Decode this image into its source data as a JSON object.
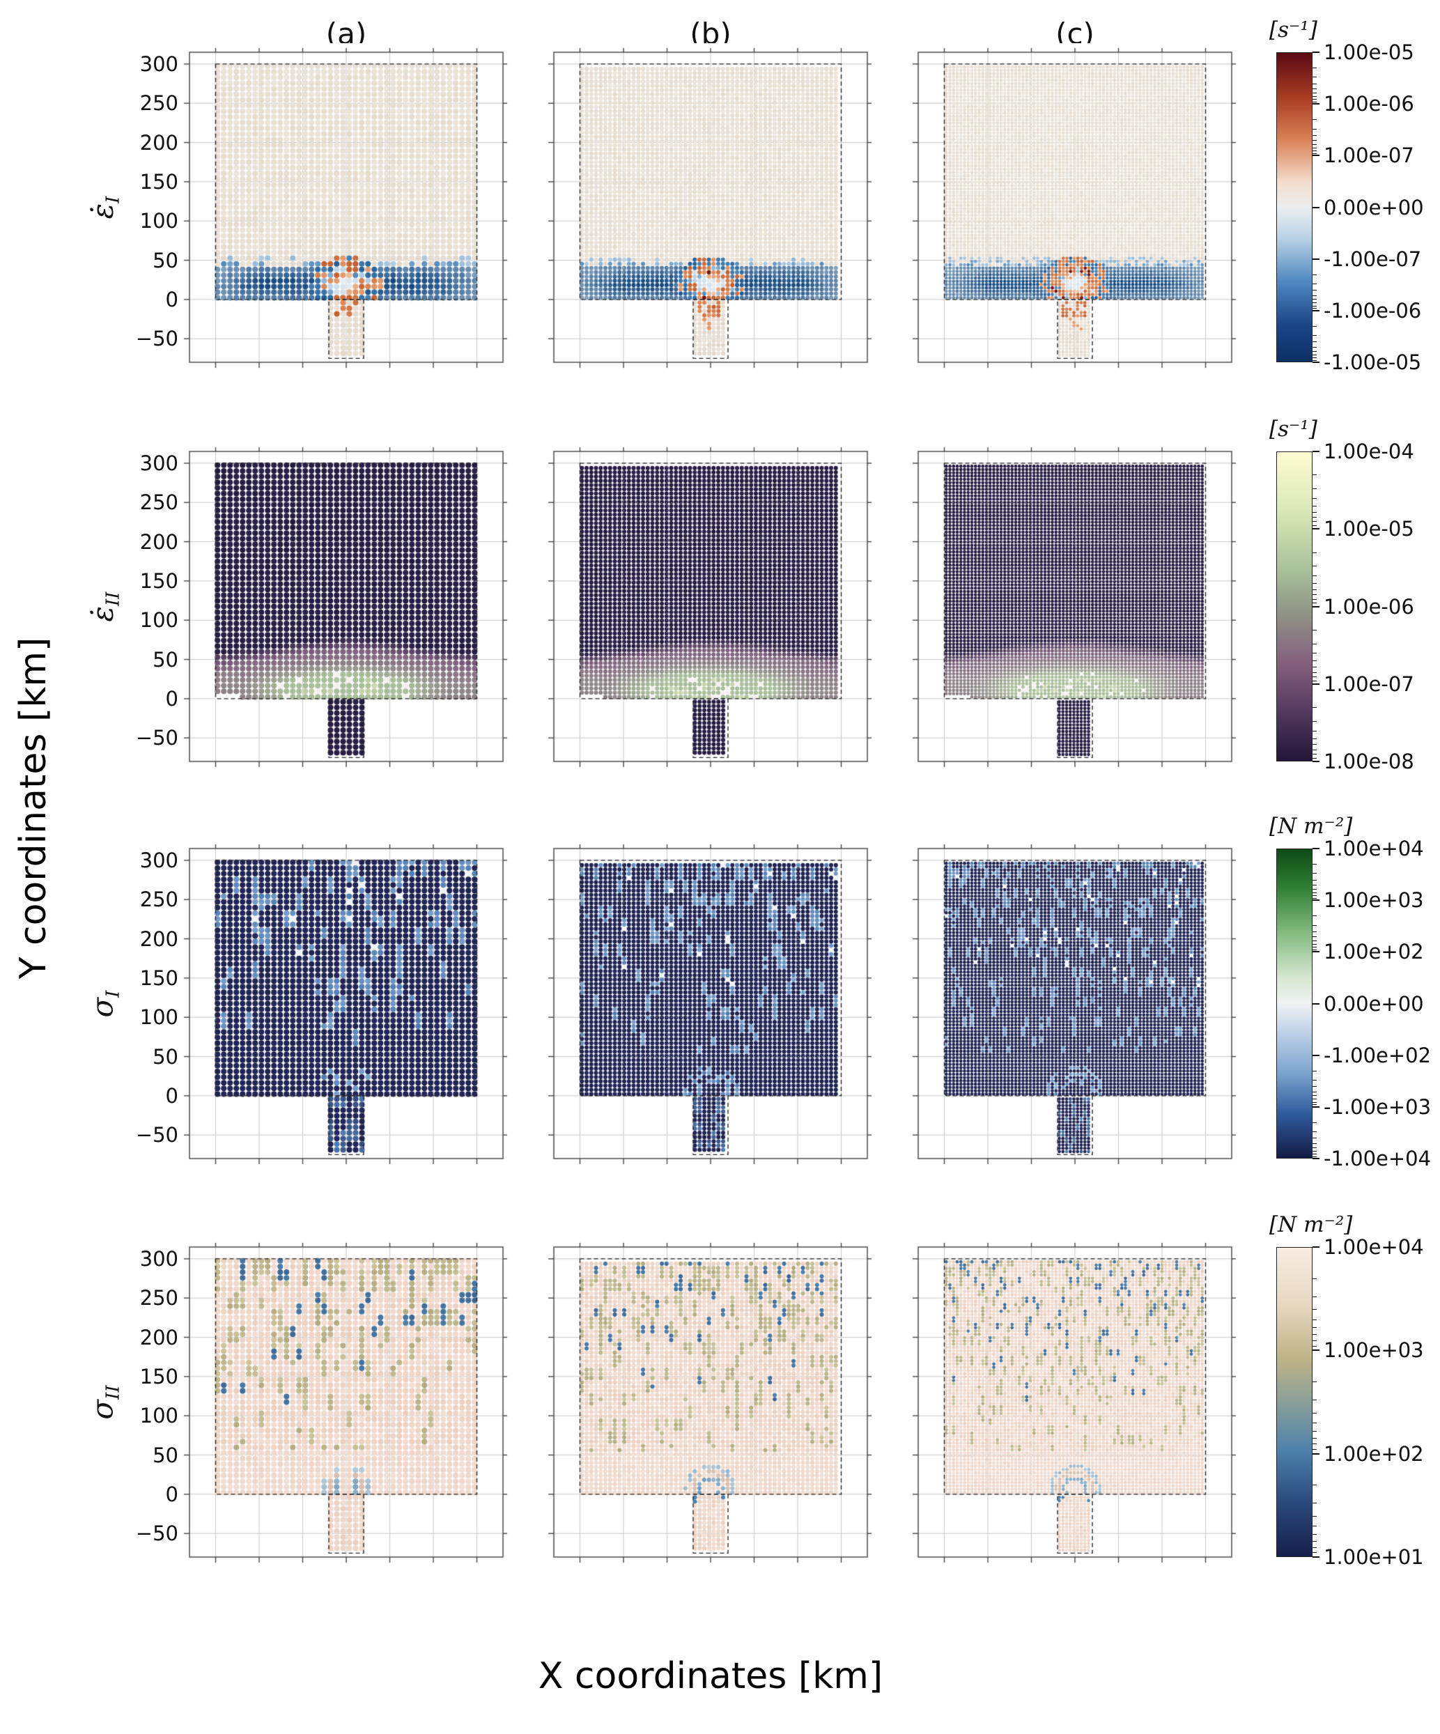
{
  "figure": {
    "x_axis_label": "X coordinates [km]",
    "y_axis_label": "Y coordinates [km]",
    "column_titles": [
      "(a)",
      "(b)",
      "(c)"
    ],
    "rows": [
      {
        "label_base": "ε̇",
        "label_sub": "I",
        "unit": "[s⁻¹]"
      },
      {
        "label_base": "ε̇",
        "label_sub": "II",
        "unit": "[s⁻¹]"
      },
      {
        "label_base": "σ",
        "label_sub": "I",
        "unit": "[N m⁻²]"
      },
      {
        "label_base": "σ",
        "label_sub": "II",
        "unit": "[N m⁻²]"
      }
    ]
  },
  "chart_data": [
    {
      "type": "heatmap",
      "row_label": "ε̇_I",
      "unit": "[s⁻¹]",
      "panels": [
        "(a)",
        "(b)",
        "(c)"
      ],
      "x_range": [
        -30,
        330
      ],
      "y_range": [
        -80,
        315
      ],
      "y_ticks": [
        300,
        250,
        200,
        150,
        100,
        50,
        0,
        -50
      ],
      "x_grid": [
        0,
        50,
        100,
        150,
        200,
        250,
        300
      ],
      "domain": {
        "main_box": {
          "x": [
            0,
            300
          ],
          "y": [
            0,
            300
          ]
        },
        "stem": {
          "x": [
            130,
            170
          ],
          "y": [
            -75,
            0
          ]
        }
      },
      "colorbar": {
        "scale": "symlog",
        "tick_labels": [
          "1.00e-05",
          "1.00e-06",
          "1.00e-07",
          "0.00e+00",
          "-1.00e-07",
          "-1.00e-06",
          "-1.00e-05"
        ],
        "gradient": [
          [
            "0%",
            "#5a0a14"
          ],
          [
            "14%",
            "#a73a22"
          ],
          [
            "28%",
            "#d98155"
          ],
          [
            "42%",
            "#f3ddcd"
          ],
          [
            "50%",
            "#eceef0"
          ],
          [
            "60%",
            "#b9d2e6"
          ],
          [
            "74%",
            "#5089c0"
          ],
          [
            "88%",
            "#1c4588"
          ],
          [
            "100%",
            "#0c2f63"
          ]
        ]
      },
      "field_summary": "Near-zero (pale) over upper block; negative (blue) band at y≈0–50 km; positive (orange/dark-red) concentric lobes centred near x≈150, y≈20 km above the stem; stem near zero with orange spots at its top."
    },
    {
      "type": "heatmap",
      "row_label": "ε̇_II",
      "unit": "[s⁻¹]",
      "panels": [
        "(a)",
        "(b)",
        "(c)"
      ],
      "x_range": [
        -30,
        330
      ],
      "y_range": [
        -80,
        315
      ],
      "y_ticks": [
        300,
        250,
        200,
        150,
        100,
        50,
        0,
        -50
      ],
      "x_grid": [
        0,
        50,
        100,
        150,
        200,
        250,
        300
      ],
      "domain": {
        "main_box": {
          "x": [
            0,
            300
          ],
          "y": [
            0,
            300
          ]
        },
        "stem": {
          "x": [
            130,
            170
          ],
          "y": [
            -75,
            0
          ]
        }
      },
      "colorbar": {
        "scale": "log",
        "tick_labels": [
          "1.00e-04",
          "1.00e-05",
          "1.00e-06",
          "1.00e-07",
          "1.00e-08"
        ],
        "gradient": [
          [
            "0%",
            "#fcfcd2"
          ],
          [
            "18%",
            "#dde9b8"
          ],
          [
            "38%",
            "#a9c29a"
          ],
          [
            "52%",
            "#909487"
          ],
          [
            "68%",
            "#85617e"
          ],
          [
            "84%",
            "#54395f"
          ],
          [
            "100%",
            "#211637"
          ]
        ]
      },
      "field_summary": "Uniform low values (~1e-8, dark purple) in upper block and stem; elevated mauve band (~1e-7–1e-6) at y≈0–60 km; highest values (~1e-5, pale green) around x≈150, y≈0–35 km above the stem."
    },
    {
      "type": "heatmap",
      "row_label": "σ_I",
      "unit": "[N m⁻²]",
      "panels": [
        "(a)",
        "(b)",
        "(c)"
      ],
      "x_range": [
        -30,
        330
      ],
      "y_range": [
        -80,
        315
      ],
      "y_ticks": [
        300,
        250,
        200,
        150,
        100,
        50,
        0,
        -50
      ],
      "x_grid": [
        0,
        50,
        100,
        150,
        200,
        250,
        300
      ],
      "domain": {
        "main_box": {
          "x": [
            0,
            300
          ],
          "y": [
            0,
            300
          ]
        },
        "stem": {
          "x": [
            130,
            170
          ],
          "y": [
            -75,
            0
          ]
        }
      },
      "colorbar": {
        "scale": "symlog",
        "tick_labels": [
          "1.00e+04",
          "1.00e+03",
          "1.00e+02",
          "0.00e+00",
          "-1.00e+02",
          "-1.00e+03",
          "-1.00e+04"
        ],
        "gradient": [
          [
            "0%",
            "#0e4a17"
          ],
          [
            "12%",
            "#2e7d32"
          ],
          [
            "27%",
            "#83ba80"
          ],
          [
            "42%",
            "#d8e8d3"
          ],
          [
            "50%",
            "#f1f2f3"
          ],
          [
            "58%",
            "#c6d6ea"
          ],
          [
            "72%",
            "#7ea6d0"
          ],
          [
            "86%",
            "#2f5a9a"
          ],
          [
            "100%",
            "#131b46"
          ]
        ]
      },
      "field_summary": "Predominantly strongly negative (dark navy) with speckled less-negative light-blue/white branching patches through y≈60–300 km (densest at top, coarsest in (a), finest in (c)); smooth dark band at y≈0–55 km; concentric fringes above the stem."
    },
    {
      "type": "heatmap",
      "row_label": "σ_II",
      "unit": "[N m⁻²]",
      "panels": [
        "(a)",
        "(b)",
        "(c)"
      ],
      "x_range": [
        -30,
        330
      ],
      "y_range": [
        -80,
        315
      ],
      "y_ticks": [
        300,
        250,
        200,
        150,
        100,
        50,
        0,
        -50
      ],
      "x_grid": [
        0,
        50,
        100,
        150,
        200,
        250,
        300
      ],
      "domain": {
        "main_box": {
          "x": [
            0,
            300
          ],
          "y": [
            0,
            300
          ]
        },
        "stem": {
          "x": [
            130,
            170
          ],
          "y": [
            -75,
            0
          ]
        }
      },
      "colorbar": {
        "scale": "log",
        "tick_labels": [
          "1.00e+04",
          "1.00e+03",
          "1.00e+02",
          "1.00e+01"
        ],
        "gradient": [
          [
            "0%",
            "#f8ece2"
          ],
          [
            "18%",
            "#e8d8c2"
          ],
          [
            "36%",
            "#bfb387"
          ],
          [
            "52%",
            "#829c9b"
          ],
          [
            "66%",
            "#4d80ab"
          ],
          [
            "82%",
            "#2b4a7e"
          ],
          [
            "100%",
            "#161f4b"
          ]
        ]
      },
      "field_summary": "High values (~1e4, pink) throughout; speckled tan (~1e3) patches and scattered blue (~1e2) spots concentrated at y≈100–300 km; smooth pink band at y≈0–55 km; ring-like fringes above the stem at x≈150."
    }
  ],
  "style": {
    "dot_spacing_km": [
      7.2,
      5.4,
      4.2
    ],
    "grid_color": "#c8c8c8",
    "frame_color": "#555555",
    "dashed_outline_color": "#222222",
    "background": "#ffffff",
    "palettes": {
      "eps1": {
        "pale1": "#ece4db",
        "pale2": "#e2d7ca",
        "blueLight": "#cfe0ec",
        "blueMid": "#4c85b6",
        "blueDark": "#1d5a94",
        "blueDeep": "#14497f",
        "orange": "#c55d2c",
        "orangeLight": "#e59a6b",
        "darkRed": "#7b130e",
        "centerPale": "#e8eef2"
      },
      "eps2": {
        "dark": "#241a3f",
        "dark2": "#2c2149",
        "mauve": "#7d5f7d",
        "sage": "#a9bd9a",
        "paleGreen": "#cbd8b0",
        "white": "#f2f2ec"
      },
      "sig1": {
        "base": "#232759",
        "base2": "#1e224e",
        "speck": "#4f7cb0",
        "speckLight": "#83a6d0",
        "white": "#eef1f5"
      },
      "sig2": {
        "base": "#f2ded3",
        "base2": "#eacfbe",
        "tan": "#b3a87e",
        "tanLight": "#cdc49c",
        "blue": "#4d80aa",
        "navy": "#2c4c7c",
        "ring1": "#d9bfae",
        "ring2": "#93b4c8"
      }
    }
  }
}
